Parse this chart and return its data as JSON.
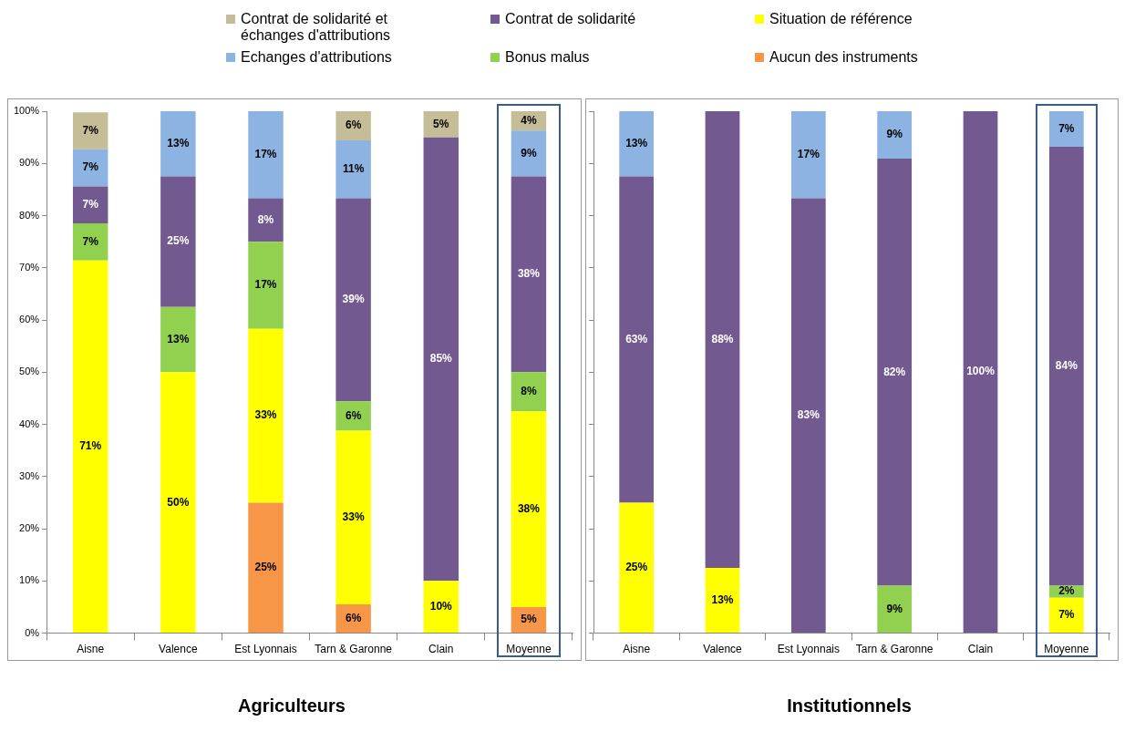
{
  "chart_data": [
    {
      "type": "bar",
      "title": "Agriculteurs",
      "stacked": true,
      "legend": "top",
      "grid": false,
      "data_labels": true,
      "categories": [
        "Aisne",
        "Valence",
        "Est Lyonnais",
        "Tarn & Garonne",
        "Clain",
        "Moyenne"
      ],
      "ylim": [
        0,
        100
      ],
      "yticks": [
        {
          "value": 0,
          "label": "0%"
        },
        {
          "value": 10,
          "label": "10%"
        },
        {
          "value": 20,
          "label": "20%"
        },
        {
          "value": 30,
          "label": "30%"
        },
        {
          "value": 40,
          "label": "40%"
        },
        {
          "value": 50,
          "label": "50%"
        },
        {
          "value": 60,
          "label": "60%"
        },
        {
          "value": 70,
          "label": "70%"
        },
        {
          "value": 80,
          "label": "80%"
        },
        {
          "value": 90,
          "label": "90%"
        },
        {
          "value": 100,
          "label": "100%"
        }
      ],
      "series": [
        {
          "name": "Aucun des instruments",
          "color": "#f79646",
          "values": [
            null,
            null,
            25,
            5.5,
            null,
            5
          ],
          "value_labels": [
            null,
            null,
            "25%",
            "6%",
            null,
            "5%"
          ]
        },
        {
          "name": "Situation de référence",
          "color": "#ffff00",
          "values": [
            71.4,
            50,
            33.3,
            33.3,
            10,
            37.5
          ],
          "value_labels": [
            "71%",
            "50%",
            "33%",
            "33%",
            "10%",
            "38%"
          ]
        },
        {
          "name": "Bonus malus",
          "color": "#92d050",
          "values": [
            7.1,
            12.5,
            16.7,
            5.6,
            null,
            7.5
          ],
          "value_labels": [
            "7%",
            "13%",
            "17%",
            "6%",
            null,
            "8%"
          ]
        },
        {
          "name": "Contrat de solidarité",
          "color": "#725990",
          "values": [
            7.1,
            25,
            8.3,
            38.9,
            85,
            37.5
          ],
          "value_labels": [
            "7%",
            "25%",
            "8%",
            "39%",
            "85%",
            "38%"
          ]
        },
        {
          "name": "Echanges d'attributions",
          "color": "#8db3e2",
          "values": [
            7.1,
            12.5,
            16.7,
            11.1,
            null,
            8.8
          ],
          "value_labels": [
            "7%",
            "13%",
            "17%",
            "11%",
            null,
            "9%"
          ]
        },
        {
          "name": "Contrat de solidarité et échanges d'attributions",
          "color": "#c4bd97",
          "values": [
            7.1,
            null,
            null,
            5.6,
            5,
            3.7
          ],
          "value_labels": [
            "7%",
            null,
            null,
            "6%",
            "5%",
            "4%"
          ]
        }
      ]
    },
    {
      "type": "bar",
      "title": "Institutionnels",
      "stacked": true,
      "grid": false,
      "data_labels": true,
      "tick_labels": "x",
      "categories": [
        "Aisne",
        "Valence",
        "Est Lyonnais",
        "Tarn & Garonne",
        "Clain",
        "Moyenne"
      ],
      "ylim": [
        0,
        100
      ],
      "yticks": [
        {
          "value": 0,
          "label": null
        },
        {
          "value": 10,
          "label": null
        },
        {
          "value": 20,
          "label": null
        },
        {
          "value": 30,
          "label": null
        },
        {
          "value": 40,
          "label": null
        },
        {
          "value": 50,
          "label": null
        },
        {
          "value": 60,
          "label": null
        },
        {
          "value": 70,
          "label": null
        },
        {
          "value": 80,
          "label": null
        },
        {
          "value": 90,
          "label": null
        },
        {
          "value": 100,
          "label": null
        }
      ],
      "series": [
        {
          "color": "#ffff00",
          "values": [
            25,
            12.5,
            null,
            null,
            null,
            6.8
          ],
          "value_labels": [
            "25%",
            "13%",
            null,
            null,
            null,
            "7%"
          ]
        },
        {
          "color": "#92d050",
          "values": [
            null,
            null,
            null,
            9.1,
            null,
            2.3
          ],
          "value_labels": [
            null,
            null,
            null,
            "9%",
            null,
            "2%"
          ]
        },
        {
          "color": "#725990",
          "values": [
            62.5,
            87.5,
            83.3,
            81.8,
            100,
            84.1
          ],
          "value_labels": [
            "63%",
            "88%",
            "83%",
            "82%",
            "100%",
            "84%"
          ]
        },
        {
          "color": "#8db3e2",
          "values": [
            12.5,
            null,
            16.7,
            9.1,
            null,
            6.8
          ],
          "value_labels": [
            "13%",
            null,
            "17%",
            "9%",
            null,
            "7%"
          ]
        }
      ]
    }
  ]
}
